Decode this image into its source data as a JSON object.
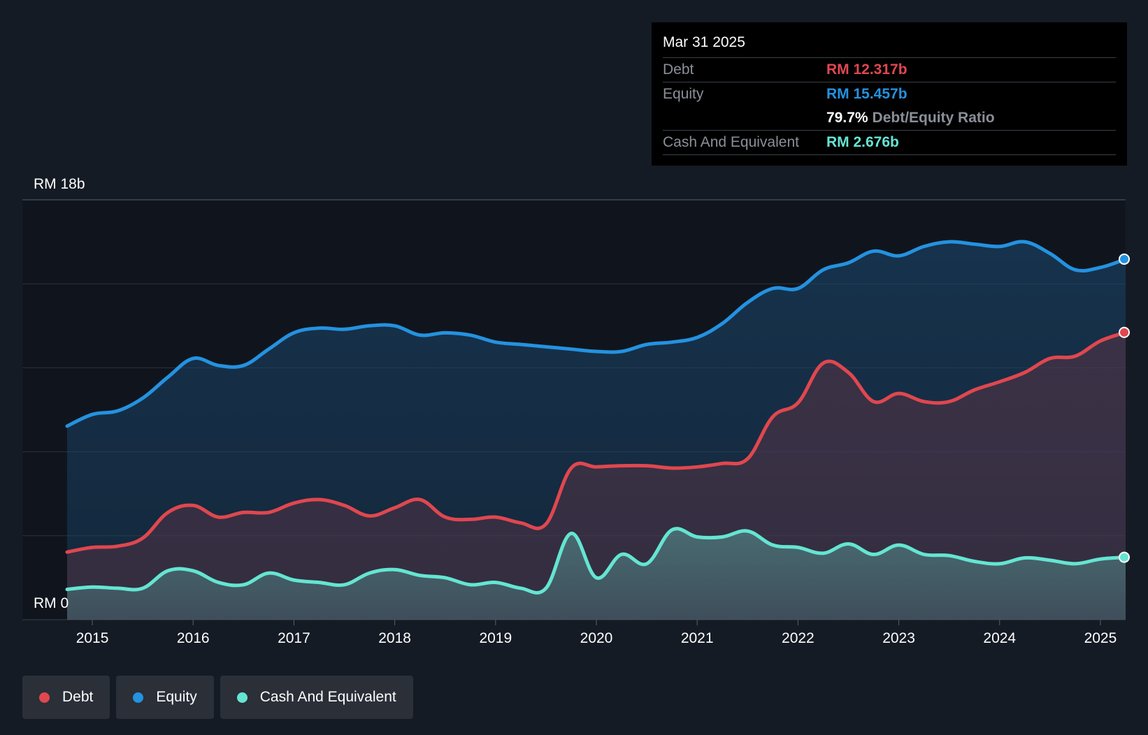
{
  "colors": {
    "debt": "#e0474f",
    "equity": "#2492e0",
    "cash": "#64e5d2",
    "background": "#151b24"
  },
  "tooltip": {
    "date": "Mar 31 2025",
    "debt_label": "Debt",
    "debt_value": "RM 12.317b",
    "equity_label": "Equity",
    "equity_value": "RM 15.457b",
    "ratio_value": "79.7%",
    "ratio_label": "Debt/Equity Ratio",
    "cash_label": "Cash And Equivalent",
    "cash_value": "RM 2.676b"
  },
  "legend": [
    {
      "label": "Debt",
      "color": "#e0474f"
    },
    {
      "label": "Equity",
      "color": "#2492e0"
    },
    {
      "label": "Cash And Equivalent",
      "color": "#64e5d2"
    }
  ],
  "chart_data": {
    "type": "area",
    "title": "",
    "xlabel": "",
    "ylabel": "",
    "unit": "RM b",
    "ylim": [
      0,
      18
    ],
    "xlim": [
      2014.75,
      2025.25
    ],
    "y_axis_labels": {
      "top": "RM 18b",
      "bottom": "RM 0"
    },
    "x_ticks": [
      "2015",
      "2016",
      "2017",
      "2018",
      "2019",
      "2020",
      "2021",
      "2022",
      "2023",
      "2024",
      "2025"
    ],
    "x_tick_values": [
      2015,
      2016,
      2017,
      2018,
      2019,
      2020,
      2021,
      2022,
      2023,
      2024,
      2025
    ],
    "series": [
      {
        "name": "Equity",
        "x": [
          2014.75,
          2015.0,
          2015.25,
          2015.5,
          2015.75,
          2016.0,
          2016.25,
          2016.5,
          2016.75,
          2017.0,
          2017.25,
          2017.5,
          2017.75,
          2018.0,
          2018.25,
          2018.5,
          2018.75,
          2019.0,
          2019.25,
          2019.5,
          2019.75,
          2020.0,
          2020.25,
          2020.5,
          2020.75,
          2021.0,
          2021.25,
          2021.5,
          2021.75,
          2022.0,
          2022.25,
          2022.5,
          2022.75,
          2023.0,
          2023.25,
          2023.5,
          2023.75,
          2024.0,
          2024.25,
          2024.5,
          2024.75,
          2025.0,
          2025.25
        ],
        "values": [
          8.3,
          8.8,
          8.95,
          9.5,
          10.4,
          11.2,
          10.9,
          10.9,
          11.6,
          12.3,
          12.5,
          12.45,
          12.6,
          12.6,
          12.2,
          12.3,
          12.2,
          11.9,
          11.8,
          11.7,
          11.6,
          11.5,
          11.5,
          11.8,
          11.9,
          12.1,
          12.7,
          13.6,
          14.2,
          14.2,
          15.0,
          15.3,
          15.8,
          15.6,
          16.0,
          16.2,
          16.1,
          16.0,
          16.2,
          15.7,
          15.0,
          15.1,
          15.457
        ]
      },
      {
        "name": "Debt",
        "x": [
          2014.75,
          2015.0,
          2015.25,
          2015.5,
          2015.75,
          2016.0,
          2016.25,
          2016.5,
          2016.75,
          2017.0,
          2017.25,
          2017.5,
          2017.75,
          2018.0,
          2018.25,
          2018.5,
          2018.75,
          2019.0,
          2019.25,
          2019.5,
          2019.75,
          2020.0,
          2020.25,
          2020.5,
          2020.75,
          2021.0,
          2021.25,
          2021.5,
          2021.75,
          2022.0,
          2022.25,
          2022.5,
          2022.75,
          2023.0,
          2023.25,
          2023.5,
          2023.75,
          2024.0,
          2024.25,
          2024.5,
          2024.75,
          2025.0,
          2025.25
        ],
        "values": [
          2.9,
          3.1,
          3.15,
          3.5,
          4.6,
          4.9,
          4.4,
          4.6,
          4.6,
          5.0,
          5.15,
          4.9,
          4.45,
          4.8,
          5.15,
          4.4,
          4.3,
          4.4,
          4.15,
          4.1,
          6.5,
          6.55,
          6.6,
          6.6,
          6.5,
          6.55,
          6.7,
          6.9,
          8.7,
          9.3,
          11.0,
          10.6,
          9.35,
          9.7,
          9.35,
          9.35,
          9.85,
          10.2,
          10.6,
          11.2,
          11.3,
          11.95,
          12.317
        ]
      },
      {
        "name": "Cash And Equivalent",
        "x": [
          2014.75,
          2015.0,
          2015.25,
          2015.5,
          2015.75,
          2016.0,
          2016.25,
          2016.5,
          2016.75,
          2017.0,
          2017.25,
          2017.5,
          2017.75,
          2018.0,
          2018.25,
          2018.5,
          2018.75,
          2019.0,
          2019.25,
          2019.5,
          2019.75,
          2020.0,
          2020.25,
          2020.5,
          2020.75,
          2021.0,
          2021.25,
          2021.5,
          2021.75,
          2022.0,
          2022.25,
          2022.5,
          2022.75,
          2023.0,
          2023.25,
          2023.5,
          2023.75,
          2024.0,
          2024.25,
          2024.5,
          2024.75,
          2025.0,
          2025.25
        ],
        "values": [
          1.3,
          1.4,
          1.35,
          1.35,
          2.1,
          2.1,
          1.6,
          1.5,
          2.0,
          1.7,
          1.6,
          1.5,
          2.0,
          2.15,
          1.9,
          1.8,
          1.5,
          1.6,
          1.35,
          1.35,
          3.7,
          1.8,
          2.8,
          2.4,
          3.85,
          3.55,
          3.55,
          3.8,
          3.2,
          3.1,
          2.85,
          3.25,
          2.8,
          3.2,
          2.8,
          2.75,
          2.5,
          2.4,
          2.65,
          2.55,
          2.4,
          2.6,
          2.676
        ]
      }
    ]
  }
}
